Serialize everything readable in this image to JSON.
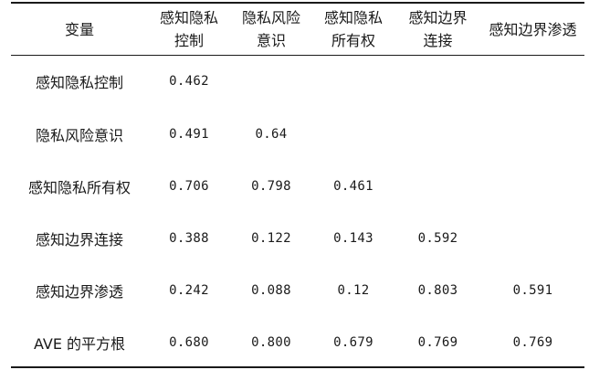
{
  "table": {
    "header": {
      "variable": "变量",
      "columns": [
        {
          "line1": "感知隐私",
          "line2": "控制"
        },
        {
          "line1": "隐私风险",
          "line2": "意识"
        },
        {
          "line1": "感知隐私",
          "line2": "所有权"
        },
        {
          "line1": "感知边界",
          "line2": "连接"
        },
        {
          "line1": "感知边界渗透",
          "line2": ""
        }
      ]
    },
    "rows": [
      {
        "label": "感知隐私控制",
        "values": [
          "0.462",
          "",
          "",
          "",
          ""
        ]
      },
      {
        "label": "隐私风险意识",
        "values": [
          "0.491",
          "0.64",
          "",
          "",
          ""
        ]
      },
      {
        "label": "感知隐私所有权",
        "values": [
          "0.706",
          "0.798",
          "0.461",
          "",
          ""
        ]
      },
      {
        "label": "感知边界连接",
        "values": [
          "0.388",
          "0.122",
          "0.143",
          "0.592",
          ""
        ]
      },
      {
        "label": "感知边界渗透",
        "values": [
          "0.242",
          "0.088",
          "0.12",
          "0.803",
          "0.591"
        ]
      },
      {
        "label": "AVE 的平方根",
        "values": [
          "0.680",
          "0.800",
          "0.679",
          "0.769",
          "0.769"
        ]
      }
    ]
  }
}
